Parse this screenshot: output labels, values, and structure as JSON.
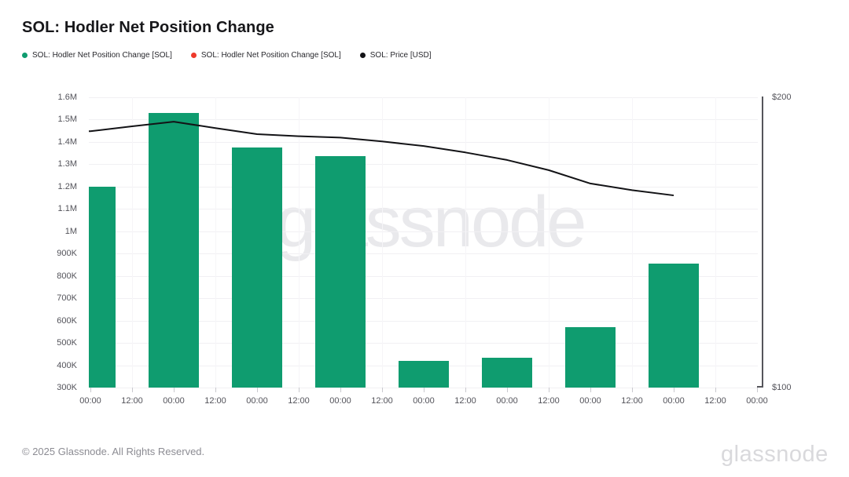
{
  "header": {
    "title": "SOL: Hodler Net Position Change"
  },
  "legend": [
    {
      "label": "SOL: Hodler Net Position Change [SOL]",
      "color": "#0f9c6f"
    },
    {
      "label": "SOL: Hodler Net Position Change [SOL]",
      "color": "#ee392b"
    },
    {
      "label": "SOL: Price [USD]",
      "color": "#131316"
    }
  ],
  "watermark": "glassnode",
  "footer": {
    "copyright": "© 2025 Glassnode. All Rights Reserved.",
    "logo": "glassnode"
  },
  "chart_data": {
    "type": "bar",
    "title": "SOL: Hodler Net Position Change",
    "legend_position": "top-left",
    "grid": "horizontal-light",
    "x_tick_labels": [
      "00:00",
      "12:00",
      "00:00",
      "12:00",
      "00:00",
      "12:00",
      "00:00",
      "12:00",
      "00:00",
      "12:00",
      "00:00",
      "12:00",
      "00:00",
      "12:00",
      "00:00",
      "12:00",
      "00:00"
    ],
    "left_axis": {
      "tick_labels": [
        "1.6M",
        "1.5M",
        "1.4M",
        "1.3M",
        "1.2M",
        "1.1M",
        "1M",
        "900K",
        "800K",
        "700K",
        "600K",
        "500K",
        "400K",
        "300K"
      ],
      "tick_values": [
        1600000,
        1500000,
        1400000,
        1300000,
        1200000,
        1100000,
        1000000,
        900000,
        800000,
        700000,
        600000,
        500000,
        400000,
        300000
      ],
      "min": 300000,
      "max": 1600000
    },
    "right_axis": {
      "tick_labels": [
        "$200",
        "$100"
      ],
      "tick_values": [
        200,
        100
      ],
      "min": 100,
      "max": 200
    },
    "series": [
      {
        "name": "SOL: Hodler Net Position Change [SOL]",
        "type": "bar",
        "color": "#0f9c6f",
        "axis": "left",
        "tick_index": [
          0,
          2,
          4,
          6,
          8,
          10,
          12,
          14
        ],
        "values": [
          1200000,
          1530000,
          1375000,
          1335000,
          420000,
          435000,
          570000,
          855000
        ]
      },
      {
        "name": "SOL: Hodler Net Position Change [SOL]",
        "type": "bar",
        "color": "#ee392b",
        "axis": "left",
        "tick_index": [],
        "values": []
      },
      {
        "name": "SOL: Price [USD]",
        "type": "line",
        "color": "#131316",
        "axis": "right",
        "tick_index": [
          0,
          1,
          2,
          3,
          4,
          5,
          6,
          7,
          8,
          9,
          10,
          11,
          12,
          13,
          14
        ],
        "values": [
          188.3,
          190.0,
          191.6,
          189.4,
          187.3,
          186.6,
          186.1,
          184.8,
          183.2,
          181.0,
          178.4,
          174.9,
          170.3,
          168.0,
          166.2
        ]
      }
    ]
  }
}
